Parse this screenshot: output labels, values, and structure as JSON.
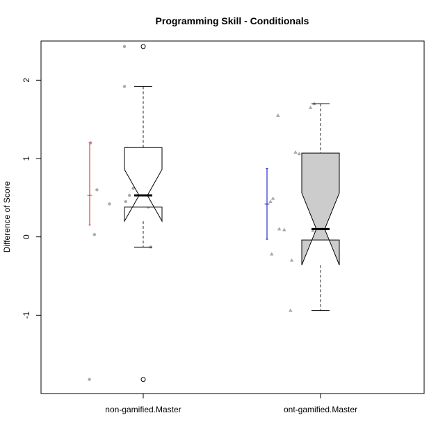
{
  "chart_data": {
    "type": "boxplot",
    "title": "Programming Skill - Conditionals",
    "xlabel": "",
    "ylabel": "Difference of Score",
    "ylim": [
      -2.0,
      2.5
    ],
    "yticks": [
      -1,
      0,
      1,
      2
    ],
    "ytick_labels": [
      "-1",
      "0",
      "1",
      "2"
    ],
    "categories": [
      "non-gamified.Master",
      "ont-gamified.Master"
    ],
    "groups": [
      {
        "label": "non-gamified.Master",
        "box_fill": "#ffffff",
        "point_shape": "circle",
        "point_color": "#aaaaaa",
        "errorbar_color": "#e41a1c",
        "whisker_low": -0.13,
        "q1": 0.38,
        "median": 0.53,
        "q3": 1.14,
        "whisker_high": 1.92,
        "notch_low": 0.2,
        "notch_high": 0.86,
        "outliers": [
          2.43,
          -1.82
        ],
        "mean": 0.53,
        "ci_low": 0.15,
        "ci_high": 1.2,
        "points": [
          {
            "jitter": -0.15,
            "y": 2.43
          },
          {
            "jitter": -0.15,
            "y": 1.92
          },
          {
            "jitter": -0.42,
            "y": 1.2
          },
          {
            "jitter": -0.13,
            "y": 1.13
          },
          {
            "jitter": -0.08,
            "y": 0.62
          },
          {
            "jitter": -0.37,
            "y": 0.6
          },
          {
            "jitter": -0.11,
            "y": 0.53
          },
          {
            "jitter": -0.14,
            "y": 0.45
          },
          {
            "jitter": -0.27,
            "y": 0.42
          },
          {
            "jitter": 0.04,
            "y": 0.38
          },
          {
            "jitter": -0.39,
            "y": 0.03
          },
          {
            "jitter": 0.06,
            "y": -0.13
          },
          {
            "jitter": -0.43,
            "y": -1.82
          }
        ]
      },
      {
        "label": "ont-gamified.Master",
        "box_fill": "#cccccc",
        "point_shape": "triangle",
        "point_color": "#aaaaaa",
        "errorbar_color": "#0000cc",
        "whisker_low": -0.94,
        "q1": -0.04,
        "median": 0.1,
        "q3": 1.07,
        "whisker_high": 1.7,
        "notch_low": -0.36,
        "notch_high": 0.56,
        "outliers": [],
        "mean": 0.42,
        "ci_low": -0.03,
        "ci_high": 0.87,
        "points": [
          {
            "jitter": -0.05,
            "y": 1.7
          },
          {
            "jitter": -0.08,
            "y": 1.65
          },
          {
            "jitter": -0.34,
            "y": 1.55
          },
          {
            "jitter": -0.2,
            "y": 1.08
          },
          {
            "jitter": -0.17,
            "y": 1.06
          },
          {
            "jitter": -0.38,
            "y": 0.49
          },
          {
            "jitter": -0.4,
            "y": 0.45
          },
          {
            "jitter": -0.33,
            "y": 0.1
          },
          {
            "jitter": -0.29,
            "y": 0.09
          },
          {
            "jitter": -0.06,
            "y": 0.08
          },
          {
            "jitter": -0.02,
            "y": 0.06
          },
          {
            "jitter": -0.13,
            "y": -0.14
          },
          {
            "jitter": -0.39,
            "y": -0.22
          },
          {
            "jitter": -0.23,
            "y": -0.3
          },
          {
            "jitter": -0.24,
            "y": -0.94
          }
        ]
      }
    ]
  }
}
